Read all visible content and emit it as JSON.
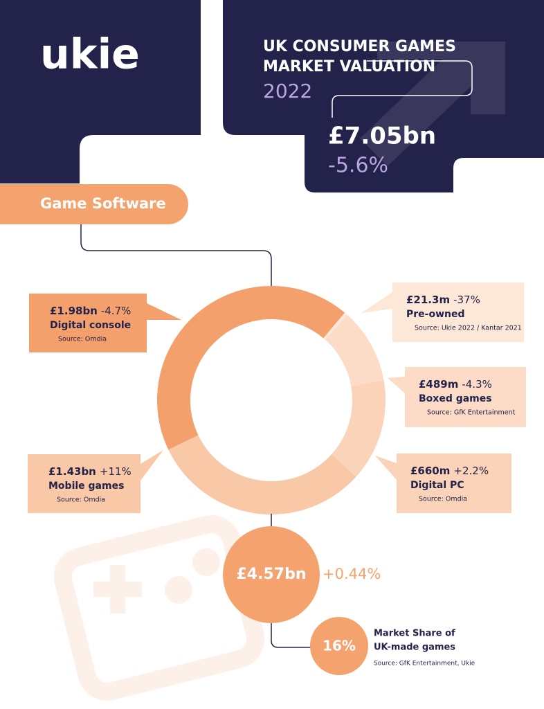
{
  "header": {
    "logo": "ukie",
    "title_line_1": "UK CONSUMER GAMES",
    "title_line_2": "MARKET VALUATION",
    "year": "2022",
    "total": "£7.05bn",
    "change": "-5.6%"
  },
  "section": "Game Software",
  "chart_data": {
    "type": "donut",
    "categories": [
      "Pre-owned",
      "Boxed games",
      "Digital PC",
      "Mobile games",
      "Digital console"
    ],
    "values": [
      21.3,
      489,
      660,
      1430,
      1980
    ],
    "value_labels": [
      "£21.3m",
      "£489m",
      "£660m",
      "£1.43bn",
      "£1.98bn"
    ],
    "changes": [
      "-37%",
      "-4.3%",
      "+2.2%",
      "+11%",
      "-4.7%"
    ],
    "sources": [
      "Source: Ukie 2022 / Kantar 2021",
      "Source: GfK Entertainment",
      "Source: Omdia",
      "Source: Omdia",
      "Source: Omdia"
    ],
    "colors": [
      "#fde8d8",
      "#fcdcc6",
      "#fad3b8",
      "#f9c8a6",
      "#f3a06c"
    ]
  },
  "total": {
    "value": "£4.57bn",
    "change": "+0.44%"
  },
  "share": {
    "value": "16%",
    "label_line_1": "Market Share of",
    "label_line_2": "UK-made games",
    "source": "Source: GfK Entertainment, Ukie"
  }
}
